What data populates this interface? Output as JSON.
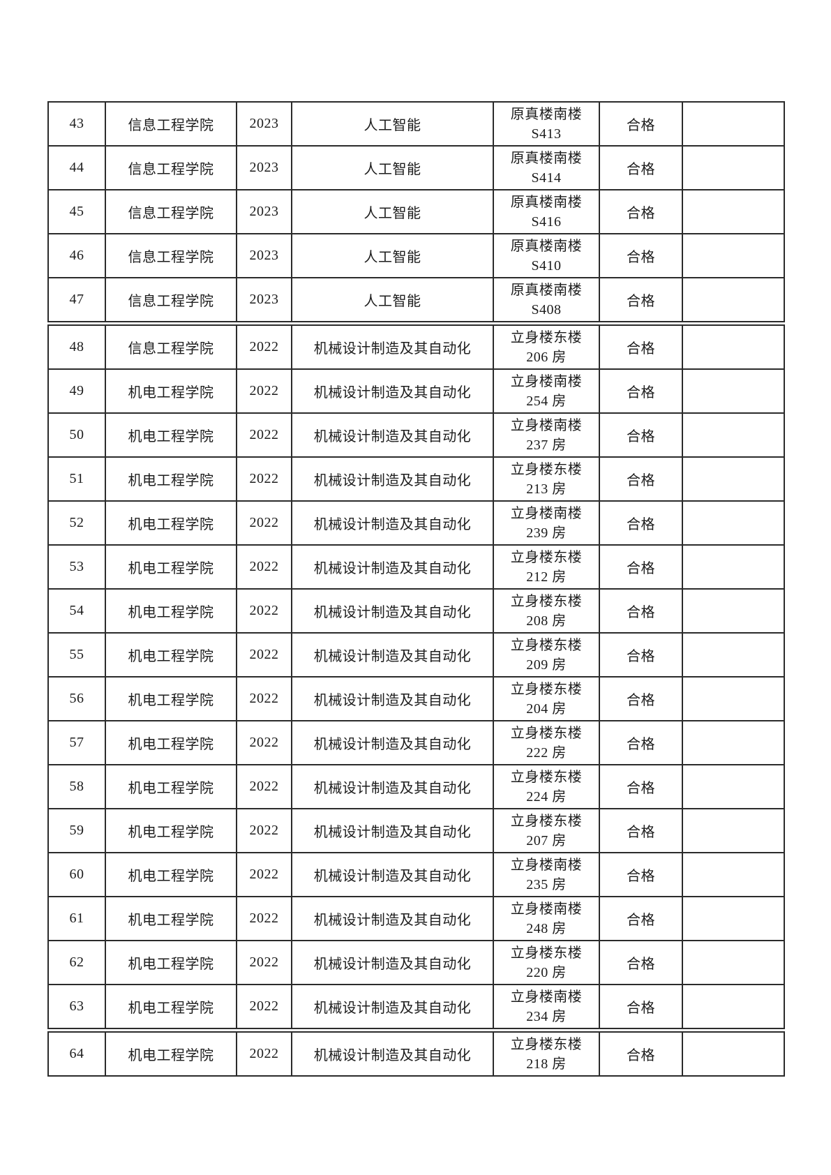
{
  "page": {
    "background": "#ffffff",
    "text_color": "#1c1c1c",
    "border_color": "#2b2b2b"
  },
  "table": {
    "rows": [
      {
        "no": "43",
        "college": "信息工程学院",
        "year": "2023",
        "major": "人工智能",
        "location_line1": "原真楼南楼",
        "location_line2": "S413",
        "result": "合格",
        "note": "",
        "page_break_above": false
      },
      {
        "no": "44",
        "college": "信息工程学院",
        "year": "2023",
        "major": "人工智能",
        "location_line1": "原真楼南楼",
        "location_line2": "S414",
        "result": "合格",
        "note": "",
        "page_break_above": false
      },
      {
        "no": "45",
        "college": "信息工程学院",
        "year": "2023",
        "major": "人工智能",
        "location_line1": "原真楼南楼",
        "location_line2": "S416",
        "result": "合格",
        "note": "",
        "page_break_above": false
      },
      {
        "no": "46",
        "college": "信息工程学院",
        "year": "2023",
        "major": "人工智能",
        "location_line1": "原真楼南楼",
        "location_line2": "S410",
        "result": "合格",
        "note": "",
        "page_break_above": false
      },
      {
        "no": "47",
        "college": "信息工程学院",
        "year": "2023",
        "major": "人工智能",
        "location_line1": "原真楼南楼",
        "location_line2": "S408",
        "result": "合格",
        "note": "",
        "page_break_above": false
      },
      {
        "no": "48",
        "college": "信息工程学院",
        "year": "2022",
        "major": "机械设计制造及其自动化",
        "location_line1": "立身楼东楼",
        "location_line2": "206 房",
        "result": "合格",
        "note": "",
        "page_break_above": true
      },
      {
        "no": "49",
        "college": "机电工程学院",
        "year": "2022",
        "major": "机械设计制造及其自动化",
        "location_line1": "立身楼南楼",
        "location_line2": "254 房",
        "result": "合格",
        "note": "",
        "page_break_above": false
      },
      {
        "no": "50",
        "college": "机电工程学院",
        "year": "2022",
        "major": "机械设计制造及其自动化",
        "location_line1": "立身楼南楼",
        "location_line2": "237 房",
        "result": "合格",
        "note": "",
        "page_break_above": false
      },
      {
        "no": "51",
        "college": "机电工程学院",
        "year": "2022",
        "major": "机械设计制造及其自动化",
        "location_line1": "立身楼东楼",
        "location_line2": "213 房",
        "result": "合格",
        "note": "",
        "page_break_above": false
      },
      {
        "no": "52",
        "college": "机电工程学院",
        "year": "2022",
        "major": "机械设计制造及其自动化",
        "location_line1": "立身楼南楼",
        "location_line2": "239 房",
        "result": "合格",
        "note": "",
        "page_break_above": false
      },
      {
        "no": "53",
        "college": "机电工程学院",
        "year": "2022",
        "major": "机械设计制造及其自动化",
        "location_line1": "立身楼东楼",
        "location_line2": "212 房",
        "result": "合格",
        "note": "",
        "page_break_above": false
      },
      {
        "no": "54",
        "college": "机电工程学院",
        "year": "2022",
        "major": "机械设计制造及其自动化",
        "location_line1": "立身楼东楼",
        "location_line2": "208 房",
        "result": "合格",
        "note": "",
        "page_break_above": false
      },
      {
        "no": "55",
        "college": "机电工程学院",
        "year": "2022",
        "major": "机械设计制造及其自动化",
        "location_line1": "立身楼东楼",
        "location_line2": "209 房",
        "result": "合格",
        "note": "",
        "page_break_above": false
      },
      {
        "no": "56",
        "college": "机电工程学院",
        "year": "2022",
        "major": "机械设计制造及其自动化",
        "location_line1": "立身楼东楼",
        "location_line2": "204 房",
        "result": "合格",
        "note": "",
        "page_break_above": false
      },
      {
        "no": "57",
        "college": "机电工程学院",
        "year": "2022",
        "major": "机械设计制造及其自动化",
        "location_line1": "立身楼东楼",
        "location_line2": "222 房",
        "result": "合格",
        "note": "",
        "page_break_above": false
      },
      {
        "no": "58",
        "college": "机电工程学院",
        "year": "2022",
        "major": "机械设计制造及其自动化",
        "location_line1": "立身楼东楼",
        "location_line2": "224 房",
        "result": "合格",
        "note": "",
        "page_break_above": false
      },
      {
        "no": "59",
        "college": "机电工程学院",
        "year": "2022",
        "major": "机械设计制造及其自动化",
        "location_line1": "立身楼东楼",
        "location_line2": "207 房",
        "result": "合格",
        "note": "",
        "page_break_above": false
      },
      {
        "no": "60",
        "college": "机电工程学院",
        "year": "2022",
        "major": "机械设计制造及其自动化",
        "location_line1": "立身楼南楼",
        "location_line2": "235 房",
        "result": "合格",
        "note": "",
        "page_break_above": false
      },
      {
        "no": "61",
        "college": "机电工程学院",
        "year": "2022",
        "major": "机械设计制造及其自动化",
        "location_line1": "立身楼南楼",
        "location_line2": "248 房",
        "result": "合格",
        "note": "",
        "page_break_above": false
      },
      {
        "no": "62",
        "college": "机电工程学院",
        "year": "2022",
        "major": "机械设计制造及其自动化",
        "location_line1": "立身楼东楼",
        "location_line2": "220 房",
        "result": "合格",
        "note": "",
        "page_break_above": false
      },
      {
        "no": "63",
        "college": "机电工程学院",
        "year": "2022",
        "major": "机械设计制造及其自动化",
        "location_line1": "立身楼南楼",
        "location_line2": "234 房",
        "result": "合格",
        "note": "",
        "page_break_above": false
      },
      {
        "no": "64",
        "college": "机电工程学院",
        "year": "2022",
        "major": "机械设计制造及其自动化",
        "location_line1": "立身楼东楼",
        "location_line2": "218 房",
        "result": "合格",
        "note": "",
        "page_break_above": true
      }
    ]
  }
}
